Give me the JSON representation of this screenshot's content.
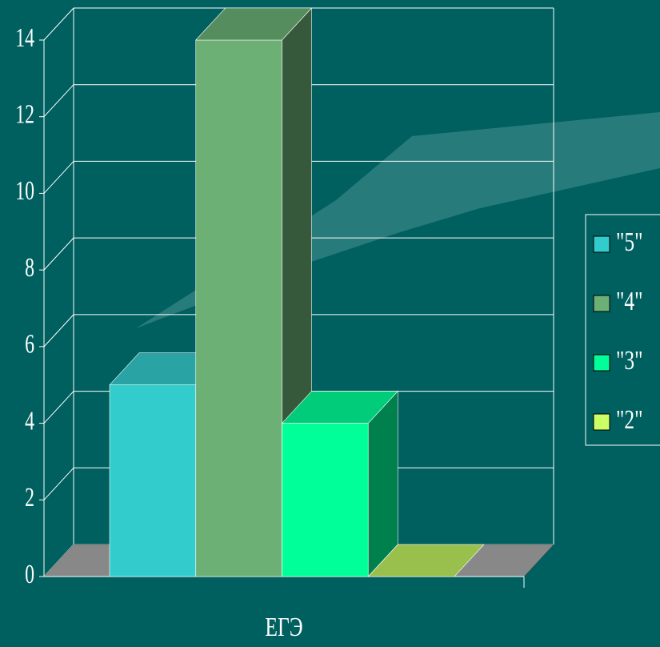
{
  "chart_data": {
    "type": "bar3d",
    "categories": [
      "ЕГЭ"
    ],
    "series": [
      {
        "name": "\"5\"",
        "color": "#33cccc",
        "values": [
          5
        ]
      },
      {
        "name": "\"4\"",
        "color": "#6cb076",
        "values": [
          14
        ]
      },
      {
        "name": "\"3\"",
        "color": "#00ff99",
        "values": [
          4
        ]
      },
      {
        "name": "\"2\"",
        "color": "#ccff66",
        "values": [
          0
        ]
      }
    ],
    "ylim": [
      0,
      14
    ],
    "yticks": [
      0,
      2,
      4,
      6,
      8,
      10,
      12,
      14
    ],
    "grid": true,
    "legend": "right"
  }
}
